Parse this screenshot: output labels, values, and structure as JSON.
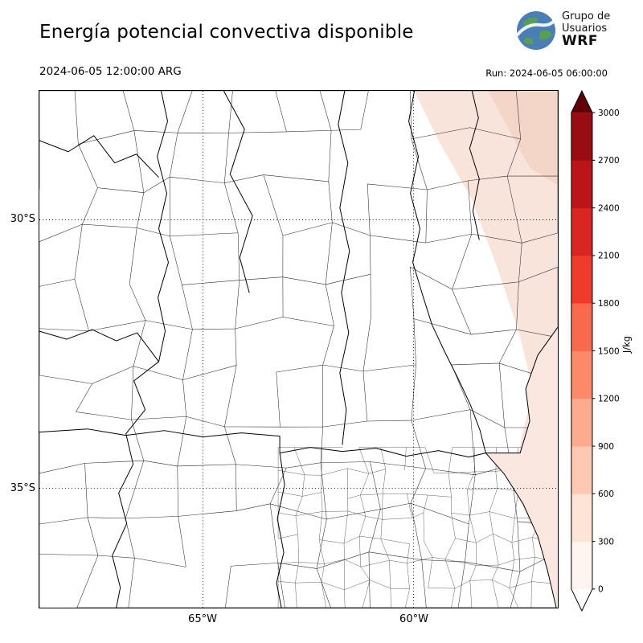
{
  "header": {
    "title": "Energía potencial convectiva disponible",
    "valid_time": "2024-06-05 12:00:00 ARG",
    "run_label": "Run: 2024-06-05 06:00:00",
    "logo": {
      "line1": "Grupo de",
      "line2": "Usuarios",
      "line3": "WRF"
    }
  },
  "axes": {
    "lat_top": "30°S",
    "lat_bottom": "35°S",
    "lon_left": "65°W",
    "lon_right": "60°W"
  },
  "colorbar": {
    "unit": "J/kg",
    "min": 0,
    "max": 3000,
    "ticks": [
      0,
      300,
      600,
      900,
      1200,
      1500,
      1800,
      2100,
      2400,
      2700,
      3000
    ],
    "under_color": "#ffffff",
    "over_color": "#5f0009",
    "segment_colors": [
      "#fff5f0",
      "#fee3d7",
      "#fdc9b3",
      "#fcab8f",
      "#fc8a6a",
      "#f9694d",
      "#ef3b2c",
      "#d92623",
      "#bb151a",
      "#980c13"
    ]
  },
  "chart_data": {
    "type": "heatmap",
    "variable": "CAPE (convective available potential energy)",
    "units": "J/kg",
    "title": "Energía potencial convectiva disponible",
    "valid_time": "2024-06-05 12:00:00 ARG",
    "model_run": "2024-06-05 06:00:00",
    "colorbar_range": [
      0,
      3000
    ],
    "colorbar_ticks": [
      0,
      300,
      600,
      900,
      1200,
      1500,
      1800,
      2100,
      2400,
      2700,
      3000
    ],
    "lat_gridlines_deg_s": [
      30,
      35
    ],
    "lon_gridlines_deg_w": [
      65,
      60
    ],
    "field_summary": "CAPE near 0 J/kg over most of central Argentina; weak CAPE of roughly 0-600 J/kg along the eastern and northeastern edge of the domain (Mesopotamia / Río de la Plata coast)"
  }
}
